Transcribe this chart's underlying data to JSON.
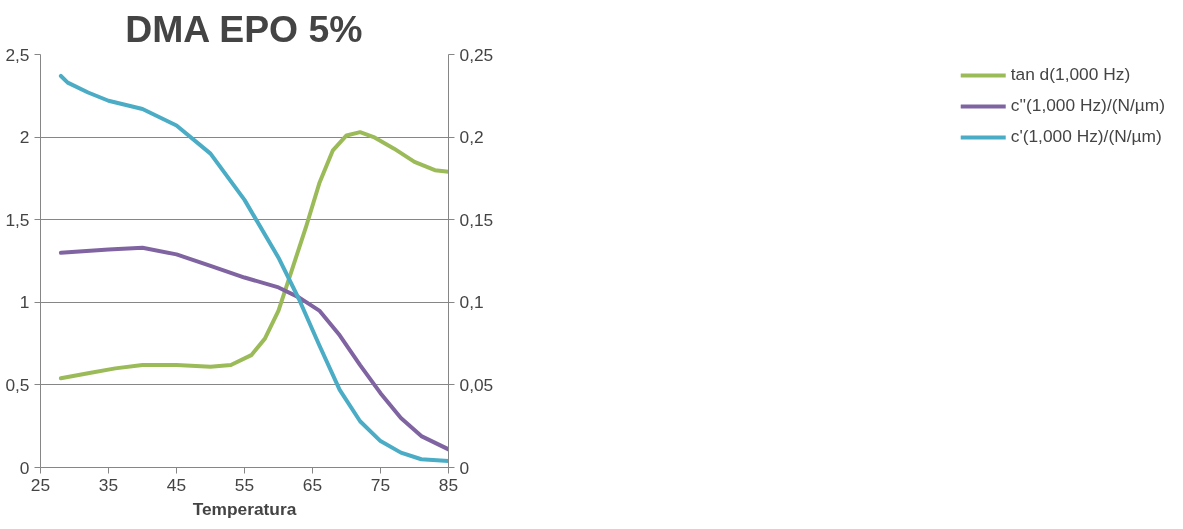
{
  "chart_data": {
    "type": "line",
    "title": "DMA EPO 5%",
    "xlabel": "Temperatura",
    "xlim": [
      25,
      85
    ],
    "xticks": [
      25,
      35,
      45,
      55,
      65,
      75,
      85
    ],
    "ylim": [
      0,
      2.5
    ],
    "yticks": [
      0,
      {
        "value": 0.5,
        "label": "0,5"
      },
      1,
      {
        "value": 1.5,
        "label": "1,5"
      },
      2,
      {
        "value": 2.5,
        "label": "2,5"
      }
    ],
    "y2lim": [
      0,
      0.25
    ],
    "y2ticks": [
      0,
      {
        "value": 0.05,
        "label": "0,05"
      },
      {
        "value": 0.1,
        "label": "0,1"
      },
      {
        "value": 0.15,
        "label": "0,15"
      },
      {
        "value": 0.2,
        "label": "0,2"
      },
      {
        "value": 0.25,
        "label": "0,25"
      }
    ],
    "grid": "y",
    "legend": "right",
    "marker": "none",
    "line_style": "solid",
    "series": [
      {
        "name": "tan d(1,000 Hz)",
        "color": "#9bbb59",
        "axis": "y2",
        "x": [
          28,
          32,
          36,
          40,
          45,
          50,
          53,
          56,
          58,
          60,
          62,
          64,
          66,
          68,
          70,
          72,
          74,
          77,
          80,
          83,
          85
        ],
        "values": [
          0.054,
          0.057,
          0.06,
          0.062,
          0.062,
          0.061,
          0.062,
          0.068,
          0.078,
          0.095,
          0.12,
          0.145,
          0.172,
          0.192,
          0.201,
          0.203,
          0.2,
          0.193,
          0.185,
          0.18,
          0.179
        ]
      },
      {
        "name": "c''(1,000 Hz)/(N/µm)",
        "color": "#8064a2",
        "x": [
          28,
          35,
          40,
          45,
          50,
          55,
          60,
          63,
          66,
          69,
          72,
          75,
          78,
          81,
          85
        ],
        "values": [
          1.3,
          1.32,
          1.33,
          1.29,
          1.22,
          1.15,
          1.09,
          1.03,
          0.95,
          0.8,
          0.62,
          0.45,
          0.3,
          0.19,
          0.11
        ]
      },
      {
        "name": "c'(1,000 Hz)/(N/µm)",
        "color": "#4bacc6",
        "x": [
          28,
          29,
          32,
          35,
          40,
          45,
          50,
          55,
          60,
          63,
          66,
          69,
          72,
          75,
          78,
          81,
          85
        ],
        "values": [
          2.37,
          2.33,
          2.27,
          2.22,
          2.17,
          2.07,
          1.9,
          1.62,
          1.27,
          1.02,
          0.74,
          0.47,
          0.28,
          0.16,
          0.09,
          0.05,
          0.04
        ]
      }
    ]
  }
}
